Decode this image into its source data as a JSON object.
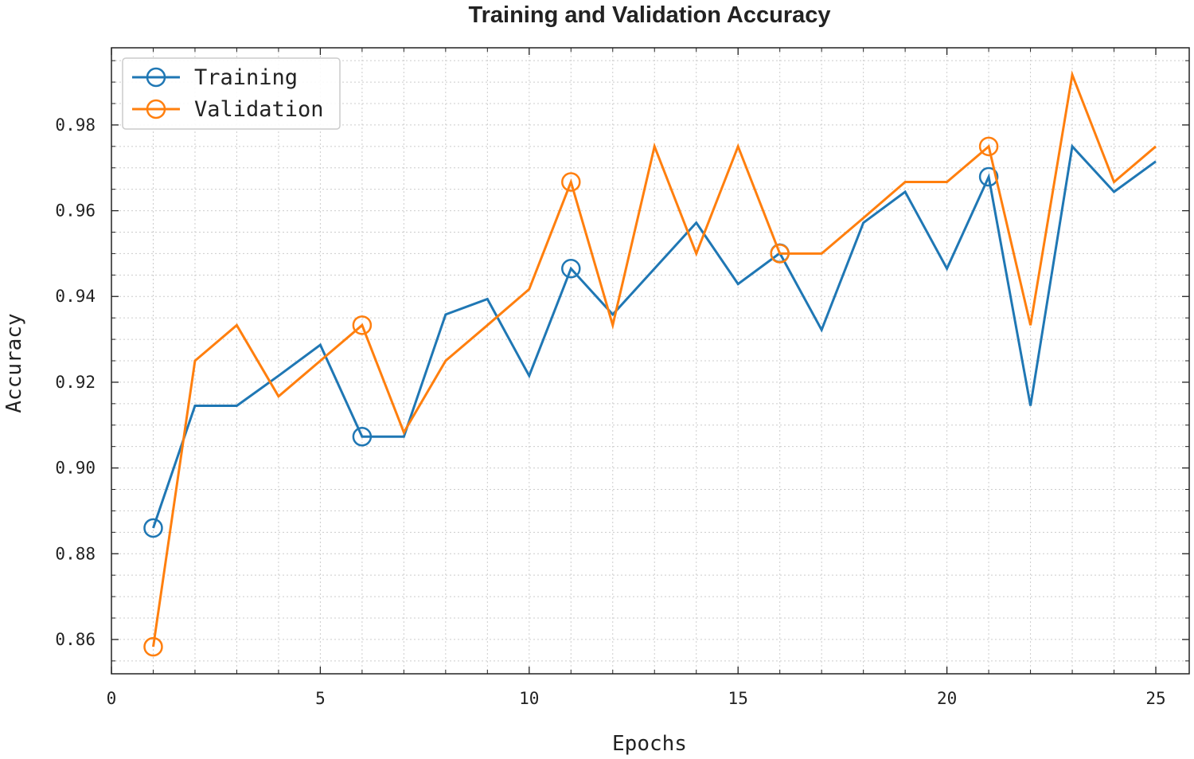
{
  "chart_data": {
    "type": "line",
    "title": "Training and Validation Accuracy",
    "xlabel": "Epochs",
    "ylabel": "Accuracy",
    "xlim": [
      0,
      25.8
    ],
    "ylim": [
      0.852,
      0.998
    ],
    "xticks": [
      0,
      5,
      10,
      15,
      20,
      25
    ],
    "xtick_labels": [
      "0",
      "5",
      "10",
      "15",
      "20",
      "25"
    ],
    "yticks": [
      0.86,
      0.88,
      0.9,
      0.92,
      0.94,
      0.96,
      0.98
    ],
    "ytick_labels": [
      "0.86",
      "0.88",
      "0.90",
      "0.92",
      "0.94",
      "0.96",
      "0.98"
    ],
    "grid": true,
    "minor_grid": true,
    "legend_position": "top-left",
    "x": [
      1,
      2,
      3,
      4,
      5,
      6,
      7,
      8,
      9,
      10,
      11,
      12,
      13,
      14,
      15,
      16,
      17,
      18,
      19,
      20,
      21,
      22,
      23,
      24,
      25
    ],
    "series": [
      {
        "name": "Training",
        "color": "#1f77b4",
        "marker_every": 5,
        "values": [
          0.886,
          0.9145,
          0.9145,
          0.9215,
          0.9287,
          0.9073,
          0.9073,
          0.9358,
          0.9394,
          0.9215,
          0.9465,
          0.9358,
          0.9465,
          0.9572,
          0.9429,
          0.9501,
          0.9322,
          0.9572,
          0.9644,
          0.9465,
          0.9679,
          0.9145,
          0.975,
          0.9644,
          0.9715
        ]
      },
      {
        "name": "Validation",
        "color": "#ff7f0e",
        "marker_every": 5,
        "values": [
          0.8583,
          0.925,
          0.9333,
          0.9167,
          0.925,
          0.9333,
          0.9083,
          0.925,
          0.9333,
          0.9417,
          0.9667,
          0.9333,
          0.975,
          0.95,
          0.975,
          0.95,
          0.95,
          0.9583,
          0.9667,
          0.9667,
          0.975,
          0.9333,
          0.9917,
          0.9667,
          0.975
        ]
      }
    ]
  }
}
